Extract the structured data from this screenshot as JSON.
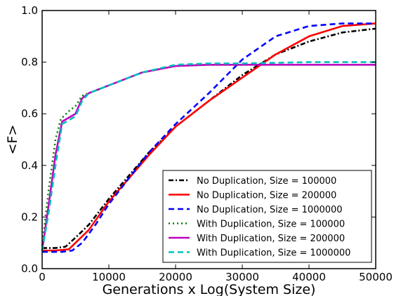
{
  "chart_data": {
    "type": "line",
    "title": "",
    "xlabel": "Generations x Log(System Size)",
    "ylabel": "<F>",
    "xlim": [
      0,
      50000
    ],
    "ylim": [
      0.0,
      1.0
    ],
    "xticks": [
      0,
      10000,
      20000,
      30000,
      40000,
      50000
    ],
    "xtick_labels": [
      "0",
      "10000",
      "20000",
      "30000",
      "40000",
      "50000"
    ],
    "yticks": [
      0.0,
      0.2,
      0.4,
      0.6,
      0.8,
      1.0
    ],
    "ytick_labels": [
      "0.0",
      "0.2",
      "0.4",
      "0.6",
      "0.8",
      "1.0"
    ],
    "grid": false,
    "legend_position": "lower-right",
    "series": [
      {
        "name": "No Duplication, Size = 100000",
        "color": "#000000",
        "style": "dashdot",
        "x": [
          0,
          2000,
          3500,
          5000,
          7000,
          10000,
          13000,
          16000,
          20000,
          25000,
          30000,
          35000,
          40000,
          45000,
          50000
        ],
        "y": [
          0.08,
          0.08,
          0.085,
          0.12,
          0.17,
          0.27,
          0.36,
          0.45,
          0.55,
          0.65,
          0.75,
          0.83,
          0.88,
          0.915,
          0.93
        ]
      },
      {
        "name": "No Duplication, Size = 200000",
        "color": "#ff0000",
        "style": "solid",
        "x": [
          0,
          2000,
          4000,
          5000,
          7000,
          10000,
          13000,
          16000,
          20000,
          25000,
          30000,
          35000,
          40000,
          45000,
          50000
        ],
        "y": [
          0.07,
          0.07,
          0.075,
          0.1,
          0.15,
          0.26,
          0.35,
          0.44,
          0.55,
          0.65,
          0.74,
          0.83,
          0.9,
          0.94,
          0.95
        ]
      },
      {
        "name": "No Duplication, Size = 1000000",
        "color": "#0000ff",
        "style": "dashed",
        "x": [
          0,
          3000,
          4500,
          6000,
          8000,
          10000,
          13000,
          16000,
          20000,
          25000,
          30000,
          35000,
          40000,
          45000,
          50000
        ],
        "y": [
          0.065,
          0.065,
          0.07,
          0.1,
          0.17,
          0.25,
          0.35,
          0.45,
          0.56,
          0.68,
          0.81,
          0.9,
          0.94,
          0.95,
          0.95
        ]
      },
      {
        "name": "With Duplication, Size = 100000",
        "color": "#008000",
        "style": "dotted",
        "x": [
          0,
          1000,
          2000,
          2800,
          4000,
          5000,
          6000,
          7000,
          10000,
          15000,
          20000,
          25000,
          30000,
          40000,
          50000
        ],
        "y": [
          0.09,
          0.31,
          0.5,
          0.58,
          0.61,
          0.63,
          0.67,
          0.68,
          0.71,
          0.76,
          0.785,
          0.79,
          0.79,
          0.79,
          0.79
        ]
      },
      {
        "name": "With Duplication, Size = 200000",
        "color": "#bf00bf",
        "style": "solid",
        "x": [
          0,
          1000,
          2000,
          3000,
          4000,
          5000,
          6000,
          7000,
          10000,
          15000,
          20000,
          25000,
          30000,
          40000,
          50000
        ],
        "y": [
          0.07,
          0.25,
          0.44,
          0.57,
          0.585,
          0.6,
          0.66,
          0.68,
          0.71,
          0.76,
          0.785,
          0.79,
          0.79,
          0.79,
          0.79
        ]
      },
      {
        "name": "With Duplication, Size = 1000000",
        "color": "#00bfbf",
        "style": "dashed",
        "x": [
          0,
          1000,
          2000,
          3000,
          4000,
          5000,
          6000,
          7000,
          10000,
          15000,
          20000,
          25000,
          30000,
          40000,
          50000
        ],
        "y": [
          0.07,
          0.22,
          0.4,
          0.56,
          0.575,
          0.59,
          0.65,
          0.68,
          0.71,
          0.76,
          0.79,
          0.795,
          0.795,
          0.8,
          0.8
        ]
      }
    ]
  }
}
